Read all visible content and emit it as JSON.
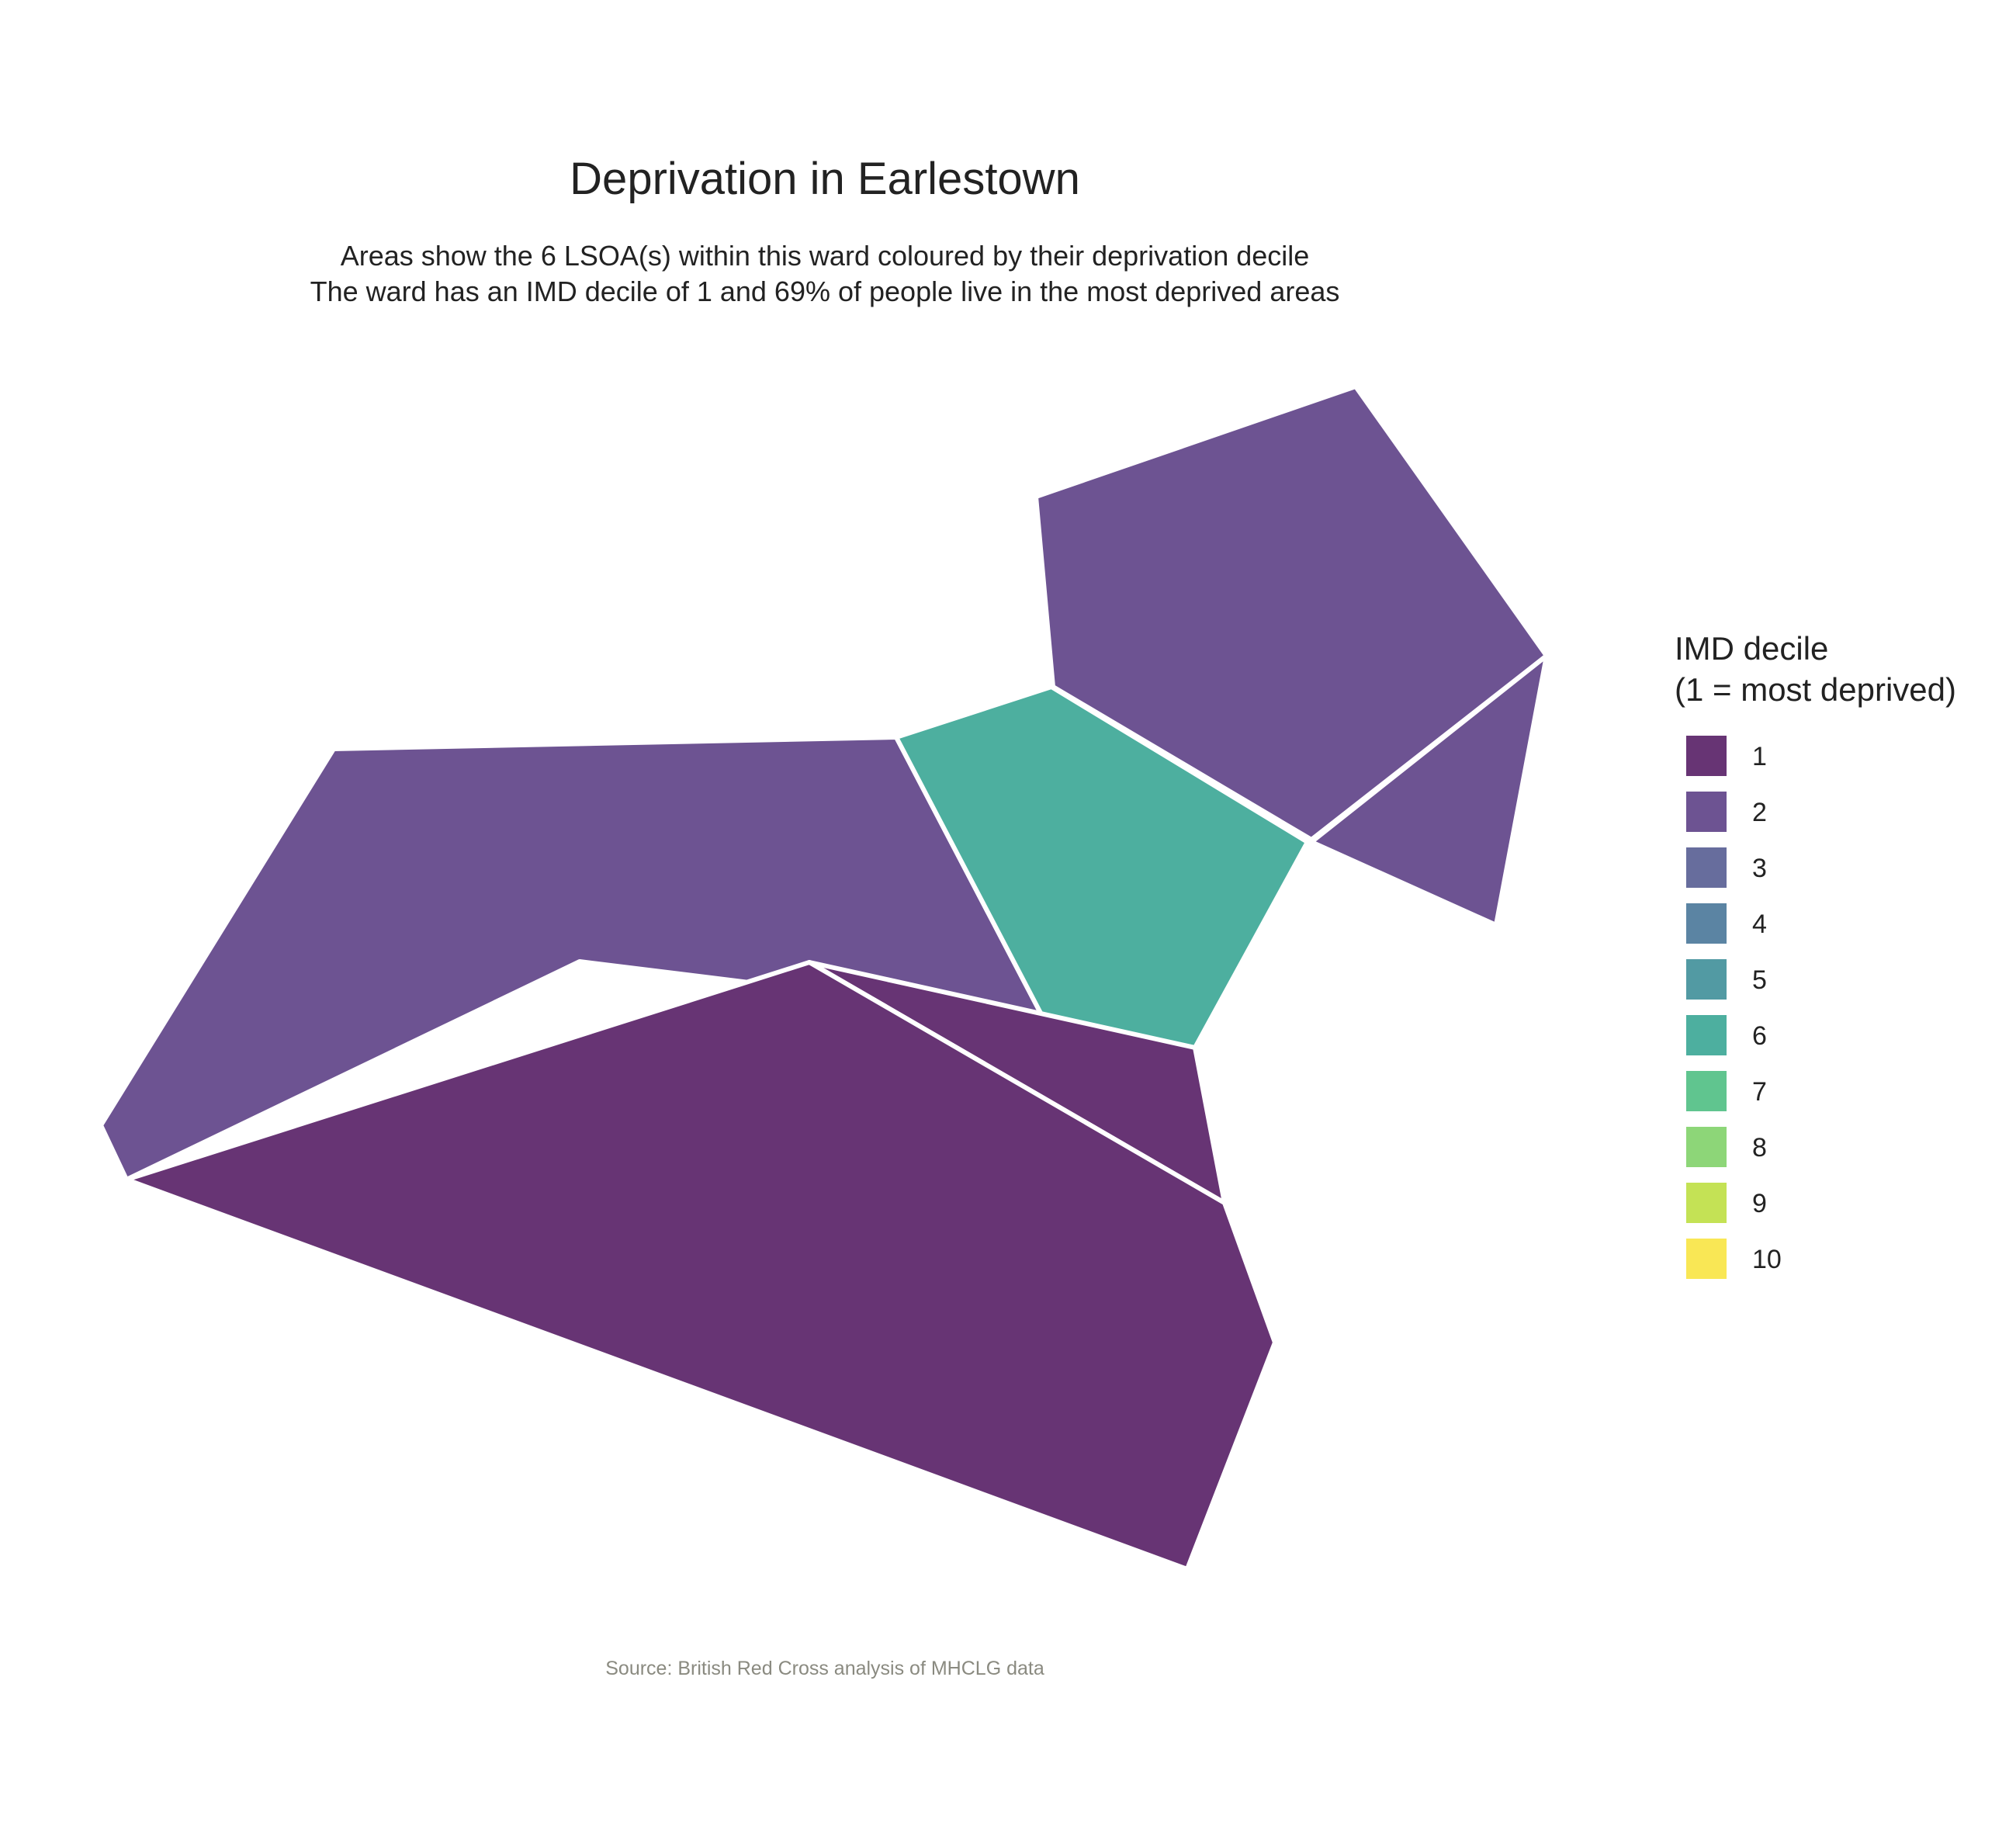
{
  "title": "Deprivation in Earlestown",
  "subtitle_lines": [
    "Areas show the 6 LSOA(s) within this ward coloured by their deprivation decile",
    "The ward has an IMD decile of 1 and 69% of people live in the most deprived areas"
  ],
  "caption": "Source: British Red Cross analysis of MHCLG data",
  "legend": {
    "title_lines": [
      "IMD decile",
      "(1 = most deprived)"
    ],
    "items": [
      {
        "label": "1",
        "color": "#673474"
      },
      {
        "label": "2",
        "color": "#6d5392"
      },
      {
        "label": "3",
        "color": "#676d9d"
      },
      {
        "label": "4",
        "color": "#5b84a3"
      },
      {
        "label": "5",
        "color": "#529aa3"
      },
      {
        "label": "6",
        "color": "#4daf9f"
      },
      {
        "label": "7",
        "color": "#60c58f"
      },
      {
        "label": "8",
        "color": "#8dd678"
      },
      {
        "label": "9",
        "color": "#c4e255"
      },
      {
        "label": "10",
        "color": "#f9e755"
      }
    ]
  },
  "chart_data": {
    "type": "choropleth",
    "lsoa_deciles": [
      2,
      6,
      2,
      2,
      1,
      1
    ]
  }
}
